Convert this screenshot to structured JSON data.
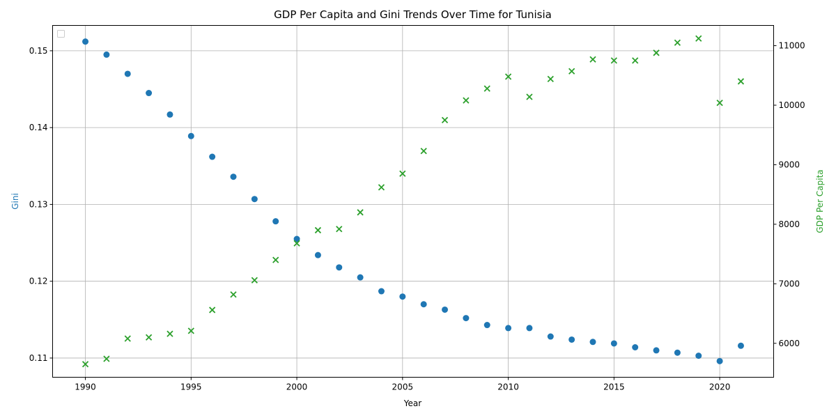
{
  "chart_data": {
    "type": "scatter",
    "title": "GDP Per Capita and Gini Trends Over Time for Tunisia",
    "xlabel": "Year",
    "ylabel_left": "Gini",
    "ylabel_right": "GDP Per Capita",
    "xlim": [
      1988.45,
      2022.55
    ],
    "ylim_left": [
      0.1075,
      0.1533
    ],
    "ylim_right": [
      5430,
      11340
    ],
    "x_ticks": [
      1990,
      1995,
      2000,
      2005,
      2010,
      2015,
      2020
    ],
    "y_left_ticks": [
      0.11,
      0.12,
      0.13,
      0.14,
      0.15
    ],
    "y_right_ticks": [
      6000,
      7000,
      8000,
      9000,
      10000,
      11000
    ],
    "grid": true,
    "legend": "top-left (empty)",
    "colors": {
      "gini": "#1f77b4",
      "gdp": "#2ca02c"
    },
    "x": [
      1990,
      1991,
      1992,
      1993,
      1994,
      1995,
      1996,
      1997,
      1998,
      1999,
      2000,
      2001,
      2002,
      2003,
      2004,
      2005,
      2006,
      2007,
      2008,
      2009,
      2010,
      2011,
      2012,
      2013,
      2014,
      2015,
      2016,
      2017,
      2018,
      2019,
      2020,
      2021
    ],
    "series": [
      {
        "axis": "left",
        "marker": "circle",
        "values": [
          0.1512,
          0.1495,
          0.147,
          0.1445,
          0.1417,
          0.1389,
          0.1362,
          0.1336,
          0.1307,
          0.1278,
          0.1255,
          0.1234,
          0.1218,
          0.1205,
          0.1187,
          0.118,
          0.117,
          0.1163,
          0.1152,
          0.1143,
          0.1139,
          0.1139,
          0.1128,
          0.1124,
          0.1121,
          0.1119,
          0.1114,
          0.111,
          0.1107,
          0.1103,
          0.1096,
          0.1116
        ]
      },
      {
        "axis": "right",
        "marker": "x",
        "values": [
          5650,
          5740,
          6080,
          6100,
          6160,
          6210,
          6560,
          6820,
          7060,
          7400,
          7680,
          7900,
          7920,
          8200,
          8620,
          8850,
          9230,
          9750,
          10080,
          10280,
          10480,
          10140,
          10440,
          10570,
          10770,
          10750,
          10750,
          10880,
          11050,
          11120,
          10040,
          10400
        ]
      }
    ]
  }
}
